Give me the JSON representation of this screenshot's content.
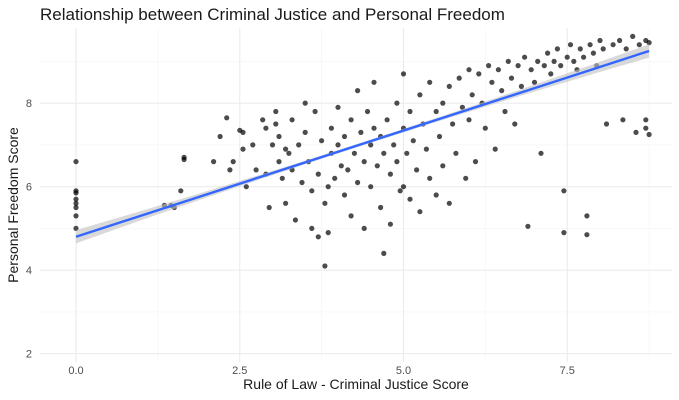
{
  "chart_data": {
    "type": "scatter",
    "title": "Relationship between Criminal Justice and Personal Freedom",
    "xlabel": "Rule of Law - Criminal Justice Score",
    "ylabel": "Personal Freedom Score",
    "xlim": [
      -0.55,
      9.1
    ],
    "ylim": [
      1.8,
      9.8
    ],
    "x_ticks": [
      0,
      2.5,
      5,
      7.5
    ],
    "x_tick_labels": [
      "0.0",
      "2.5",
      "5.0",
      "7.5"
    ],
    "y_ticks": [
      2,
      4,
      6,
      8
    ],
    "y_tick_labels": [
      "2",
      "4",
      "6",
      "8"
    ],
    "grid": true,
    "point_color": "#000000",
    "point_opacity": 0.7,
    "trend": {
      "method": "linear",
      "x_range": [
        0,
        8.75
      ],
      "y_start": 4.8,
      "y_end": 9.25,
      "line_color": "#3366ff",
      "band_color": "#bfbfbf",
      "band_halfwidth_ends": 0.16,
      "band_halfwidth_center": 0.04
    },
    "points": [
      [
        0,
        6.6
      ],
      [
        0,
        5.9
      ],
      [
        0,
        5.85
      ],
      [
        0,
        5.7
      ],
      [
        0,
        5.6
      ],
      [
        0,
        5.5
      ],
      [
        0,
        5.3
      ],
      [
        0,
        5.0
      ],
      [
        1.35,
        5.55
      ],
      [
        1.45,
        5.55
      ],
      [
        1.5,
        5.5
      ],
      [
        1.6,
        5.9
      ],
      [
        1.65,
        6.7
      ],
      [
        1.65,
        6.65
      ],
      [
        2.1,
        6.6
      ],
      [
        2.2,
        7.2
      ],
      [
        2.3,
        7.65
      ],
      [
        2.35,
        6.4
      ],
      [
        2.4,
        6.6
      ],
      [
        2.5,
        7.35
      ],
      [
        2.55,
        7.3
      ],
      [
        2.55,
        6.9
      ],
      [
        2.6,
        6.0
      ],
      [
        2.7,
        7.0
      ],
      [
        2.75,
        6.4
      ],
      [
        2.85,
        7.6
      ],
      [
        2.9,
        7.4
      ],
      [
        2.9,
        6.3
      ],
      [
        2.95,
        5.5
      ],
      [
        3.0,
        7.0
      ],
      [
        3.05,
        7.8
      ],
      [
        3.05,
        7.5
      ],
      [
        3.1,
        7.2
      ],
      [
        3.1,
        6.6
      ],
      [
        3.15,
        6.2
      ],
      [
        3.2,
        6.9
      ],
      [
        3.2,
        5.6
      ],
      [
        3.25,
        6.8
      ],
      [
        3.3,
        7.6
      ],
      [
        3.3,
        6.4
      ],
      [
        3.35,
        5.2
      ],
      [
        3.4,
        7.0
      ],
      [
        3.45,
        6.1
      ],
      [
        3.5,
        8.0
      ],
      [
        3.5,
        7.3
      ],
      [
        3.55,
        6.6
      ],
      [
        3.6,
        5.9
      ],
      [
        3.6,
        5.0
      ],
      [
        3.65,
        7.8
      ],
      [
        3.7,
        6.3
      ],
      [
        3.7,
        4.8
      ],
      [
        3.75,
        7.1
      ],
      [
        3.8,
        5.6
      ],
      [
        3.8,
        4.1
      ],
      [
        3.85,
        6.0
      ],
      [
        3.85,
        4.9
      ],
      [
        3.9,
        7.4
      ],
      [
        3.9,
        6.8
      ],
      [
        3.95,
        6.2
      ],
      [
        4.0,
        7.9
      ],
      [
        4.0,
        7.0
      ],
      [
        4.05,
        6.5
      ],
      [
        4.1,
        7.2
      ],
      [
        4.1,
        5.8
      ],
      [
        4.15,
        6.4
      ],
      [
        4.2,
        7.6
      ],
      [
        4.2,
        5.3
      ],
      [
        4.25,
        6.8
      ],
      [
        4.3,
        8.3
      ],
      [
        4.3,
        6.1
      ],
      [
        4.35,
        7.3
      ],
      [
        4.4,
        6.6
      ],
      [
        4.4,
        5.0
      ],
      [
        4.45,
        7.8
      ],
      [
        4.5,
        7.0
      ],
      [
        4.5,
        6.0
      ],
      [
        4.55,
        8.5
      ],
      [
        4.55,
        7.4
      ],
      [
        4.6,
        6.5
      ],
      [
        4.65,
        7.2
      ],
      [
        4.65,
        5.5
      ],
      [
        4.7,
        6.8
      ],
      [
        4.7,
        4.4
      ],
      [
        4.75,
        7.6
      ],
      [
        4.8,
        6.3
      ],
      [
        4.8,
        5.1
      ],
      [
        4.85,
        7.0
      ],
      [
        4.9,
        8.0
      ],
      [
        4.9,
        6.6
      ],
      [
        4.95,
        5.9
      ],
      [
        5.0,
        8.7
      ],
      [
        5.0,
        7.4
      ],
      [
        5.0,
        6.0
      ],
      [
        5.05,
        6.8
      ],
      [
        5.1,
        7.8
      ],
      [
        5.1,
        5.7
      ],
      [
        5.15,
        7.1
      ],
      [
        5.2,
        6.4
      ],
      [
        5.25,
        8.2
      ],
      [
        5.25,
        5.4
      ],
      [
        5.3,
        7.5
      ],
      [
        5.35,
        6.9
      ],
      [
        5.4,
        8.5
      ],
      [
        5.4,
        6.2
      ],
      [
        5.5,
        7.8
      ],
      [
        5.5,
        5.8
      ],
      [
        5.55,
        7.2
      ],
      [
        5.6,
        8.0
      ],
      [
        5.6,
        6.5
      ],
      [
        5.7,
        8.4
      ],
      [
        5.7,
        5.6
      ],
      [
        5.75,
        7.5
      ],
      [
        5.8,
        6.8
      ],
      [
        5.85,
        8.6
      ],
      [
        5.9,
        7.9
      ],
      [
        5.95,
        6.2
      ],
      [
        6.0,
        8.8
      ],
      [
        6.0,
        7.6
      ],
      [
        6.05,
        8.2
      ],
      [
        6.1,
        6.6
      ],
      [
        6.15,
        8.7
      ],
      [
        6.2,
        8.0
      ],
      [
        6.25,
        7.4
      ],
      [
        6.3,
        8.9
      ],
      [
        6.35,
        8.5
      ],
      [
        6.4,
        6.9
      ],
      [
        6.45,
        8.8
      ],
      [
        6.5,
        8.3
      ],
      [
        6.55,
        7.8
      ],
      [
        6.6,
        9.0
      ],
      [
        6.65,
        8.6
      ],
      [
        6.7,
        7.5
      ],
      [
        6.75,
        8.9
      ],
      [
        6.8,
        8.4
      ],
      [
        6.85,
        9.1
      ],
      [
        6.9,
        5.05
      ],
      [
        6.95,
        8.8
      ],
      [
        7.0,
        8.5
      ],
      [
        7.05,
        9.0
      ],
      [
        7.1,
        6.8
      ],
      [
        7.15,
        8.9
      ],
      [
        7.2,
        9.2
      ],
      [
        7.25,
        8.7
      ],
      [
        7.3,
        9.0
      ],
      [
        7.35,
        9.3
      ],
      [
        7.4,
        8.9
      ],
      [
        7.45,
        5.9
      ],
      [
        7.45,
        4.9
      ],
      [
        7.5,
        9.1
      ],
      [
        7.55,
        9.4
      ],
      [
        7.6,
        9.0
      ],
      [
        7.65,
        8.8
      ],
      [
        7.7,
        9.3
      ],
      [
        7.75,
        9.1
      ],
      [
        7.8,
        5.3
      ],
      [
        7.8,
        4.85
      ],
      [
        7.85,
        9.4
      ],
      [
        7.9,
        9.2
      ],
      [
        7.95,
        8.9
      ],
      [
        8.0,
        9.5
      ],
      [
        8.05,
        9.3
      ],
      [
        8.1,
        7.5
      ],
      [
        8.2,
        9.4
      ],
      [
        8.3,
        9.5
      ],
      [
        8.35,
        7.6
      ],
      [
        8.4,
        9.3
      ],
      [
        8.5,
        9.6
      ],
      [
        8.55,
        7.3
      ],
      [
        8.6,
        9.4
      ],
      [
        8.7,
        9.5
      ],
      [
        8.7,
        7.6
      ],
      [
        8.75,
        9.45
      ],
      [
        8.75,
        7.25
      ],
      [
        8.7,
        7.4
      ]
    ]
  }
}
